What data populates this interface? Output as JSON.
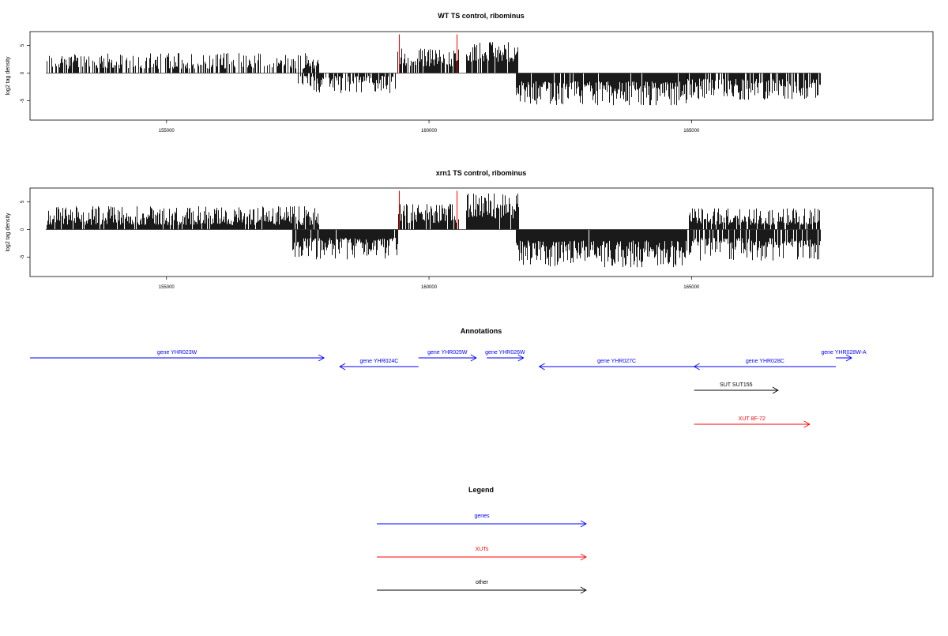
{
  "chart_data": [
    {
      "type": "bar",
      "title": "WT TS control, ribominus",
      "ylabel": "log2 tag density",
      "xlabel": "",
      "xlim": [
        152400,
        169600
      ],
      "ylim": [
        -8.5,
        7.5
      ],
      "xticks": [
        155000,
        160000,
        165000
      ],
      "xtick_labels": [
        "155000",
        "160000",
        "165000"
      ],
      "yticks": [
        -5,
        0,
        5
      ],
      "ytick_labels": [
        "-5",
        "0",
        "5"
      ],
      "grid": false,
      "segments": [
        {
          "start": 152700,
          "end": 157900,
          "sign": 1,
          "min": 0.8,
          "max": 3.6,
          "density": 0.62
        },
        {
          "start": 157500,
          "end": 159350,
          "sign": -1,
          "min": 0.5,
          "max": 3.6,
          "density": 0.72
        },
        {
          "start": 159400,
          "end": 160550,
          "sign": 1,
          "min": 1.2,
          "max": 4.6,
          "density": 0.78
        },
        {
          "start": 160700,
          "end": 161700,
          "sign": 1,
          "min": 2.0,
          "max": 5.6,
          "density": 0.9
        },
        {
          "start": 161650,
          "end": 164900,
          "sign": -1,
          "min": 1.5,
          "max": 5.8,
          "density": 0.95
        },
        {
          "start": 164900,
          "end": 167450,
          "sign": -1,
          "min": 1.0,
          "max": 4.8,
          "density": 0.82
        }
      ],
      "highlights": [
        {
          "x": 159420,
          "value": 7.0,
          "color": "#ff0000"
        },
        {
          "x": 160520,
          "value": 7.0,
          "color": "#ff0000"
        }
      ],
      "bar_color": "#000000"
    },
    {
      "type": "bar",
      "title": "xrn1 TS control, ribominus",
      "ylabel": "log2 tag density",
      "xlabel": "",
      "xlim": [
        152400,
        169600
      ],
      "ylim": [
        -8.5,
        7.5
      ],
      "xticks": [
        155000,
        160000,
        165000
      ],
      "xtick_labels": [
        "155000",
        "160000",
        "165000"
      ],
      "yticks": [
        -5,
        0,
        5
      ],
      "ytick_labels": [
        "-5",
        "0",
        "5"
      ],
      "grid": false,
      "segments": [
        {
          "start": 152700,
          "end": 157900,
          "sign": 1,
          "min": 0.8,
          "max": 4.2,
          "density": 0.92
        },
        {
          "start": 157400,
          "end": 159400,
          "sign": -1,
          "min": 1.5,
          "max": 5.4,
          "density": 0.95
        },
        {
          "start": 159400,
          "end": 160550,
          "sign": 1,
          "min": 1.2,
          "max": 4.6,
          "density": 0.85
        },
        {
          "start": 160700,
          "end": 161700,
          "sign": 1,
          "min": 2.0,
          "max": 6.5,
          "density": 0.95
        },
        {
          "start": 161650,
          "end": 164900,
          "sign": -1,
          "min": 2.0,
          "max": 6.8,
          "density": 0.98
        },
        {
          "start": 164950,
          "end": 167450,
          "sign": 1,
          "min": 0.8,
          "max": 3.8,
          "density": 0.85
        },
        {
          "start": 164950,
          "end": 167450,
          "sign": -1,
          "min": 1.5,
          "max": 5.6,
          "density": 0.9
        }
      ],
      "highlights": [
        {
          "x": 159420,
          "value": 7.0,
          "color": "#ff0000"
        },
        {
          "x": 160520,
          "value": 7.0,
          "color": "#ff0000"
        }
      ],
      "bar_color": "#000000"
    },
    {
      "type": "diagram",
      "title": "Annotations",
      "xlim": [
        152400,
        169600
      ],
      "features": [
        {
          "label": "gene YHR023W",
          "start": 152400,
          "end": 158000,
          "strand": "+",
          "row": 0,
          "color": "#0000ff"
        },
        {
          "label": "gene YHR024C",
          "start": 158300,
          "end": 159800,
          "strand": "-",
          "row": 1,
          "color": "#0000ff"
        },
        {
          "label": "gene YHR025W",
          "start": 159800,
          "end": 160900,
          "strand": "+",
          "row": 0,
          "color": "#0000ff"
        },
        {
          "label": "gene YHR026W",
          "start": 161100,
          "end": 161800,
          "strand": "+",
          "row": 0,
          "color": "#0000ff"
        },
        {
          "label": "gene YHR027C",
          "start": 162100,
          "end": 165050,
          "strand": "-",
          "row": 1,
          "color": "#0000ff"
        },
        {
          "label": "gene YHR028C",
          "start": 165050,
          "end": 167750,
          "strand": "-",
          "row": 1,
          "color": "#0000ff"
        },
        {
          "label": "gene YHR028W-A",
          "start": 167750,
          "end": 168050,
          "strand": "+",
          "row": 0,
          "color": "#0000ff"
        },
        {
          "label": "SUT SUT155",
          "start": 165050,
          "end": 166650,
          "strand": "+",
          "row": 2,
          "color": "#000000"
        },
        {
          "label": "XUT 8F-72",
          "start": 165050,
          "end": 167250,
          "strand": "+",
          "row": 3,
          "color": "#ff0000"
        }
      ]
    },
    {
      "type": "legend",
      "title": "Legend",
      "items": [
        {
          "label": "genes",
          "color": "#0000ff"
        },
        {
          "label": "XUTs",
          "color": "#ff0000"
        },
        {
          "label": "other",
          "color": "#000000"
        }
      ]
    }
  ]
}
